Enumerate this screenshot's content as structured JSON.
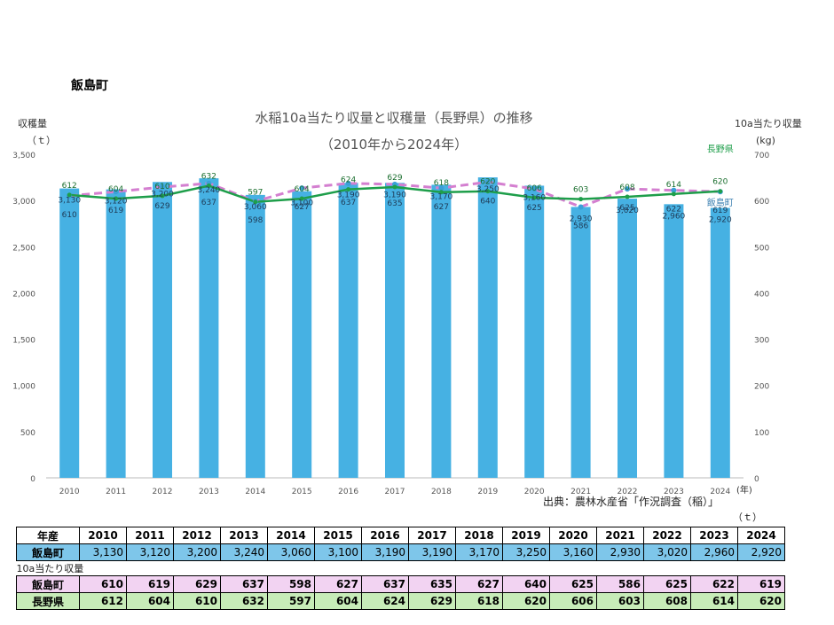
{
  "town": "飯島町",
  "table": {
    "header_label": "年産",
    "harvest_label": "飯島町",
    "yield_caption": "10a当たり収量",
    "iijima_label": "飯島町",
    "nagano_label": "長野県"
  },
  "chart_data": {
    "type": "bar+line",
    "title": "水稲10a当たり収量と収穫量（長野県）の推移",
    "subtitle": "（2010年から2024年）",
    "left_axis_label": "収穫量",
    "left_axis_unit": "（ｔ）",
    "right_axis_label": "10a当たり収量",
    "right_axis_unit": "(kg)",
    "x_unit": "(年)",
    "source": "出典：農林水産省「作況調査（稲）」",
    "table_unit": "（ｔ）",
    "categories": [
      "2010",
      "2011",
      "2012",
      "2013",
      "2014",
      "2015",
      "2016",
      "2017",
      "2018",
      "2019",
      "2020",
      "2021",
      "2022",
      "2023",
      "2024"
    ],
    "harvest_values": [
      3130,
      3120,
      3200,
      3240,
      3060,
      3100,
      3190,
      3190,
      3170,
      3250,
      3160,
      2930,
      3020,
      2960,
      2920
    ],
    "harvest_display": [
      "3,130",
      "3,120",
      "3,200",
      "3,240",
      "3,060",
      "3,100",
      "3,190",
      "3,190",
      "3,170",
      "3,250",
      "3,160",
      "2,930",
      "3,020",
      "2,960",
      "2,920"
    ],
    "left_ylim": [
      0,
      3500
    ],
    "left_ticks": [
      0,
      500,
      1000,
      1500,
      2000,
      2500,
      3000,
      3500
    ],
    "left_tick_labels": [
      "0",
      "500",
      "1,000",
      "1,500",
      "2,000",
      "2,500",
      "3,000",
      "3,500"
    ],
    "right_ylim": [
      0,
      700
    ],
    "right_ticks": [
      0,
      100,
      200,
      300,
      400,
      500,
      600,
      700
    ],
    "right_tick_labels": [
      "0",
      "100",
      "200",
      "300",
      "400",
      "500",
      "600",
      "700"
    ],
    "series": [
      {
        "name": "飯島町",
        "axis": "right",
        "values": [
          610,
          619,
          629,
          637,
          598,
          627,
          637,
          635,
          627,
          640,
          625,
          586,
          625,
          622,
          619
        ],
        "color": "#d47fd0",
        "style": "dashed"
      },
      {
        "name": "長野県",
        "axis": "right",
        "values": [
          612,
          604,
          610,
          632,
          597,
          604,
          624,
          629,
          618,
          620,
          606,
          603,
          608,
          614,
          620
        ],
        "color": "#1e9e4a",
        "style": "solid"
      }
    ],
    "bar_color": "#46b1e3",
    "grid": false
  }
}
